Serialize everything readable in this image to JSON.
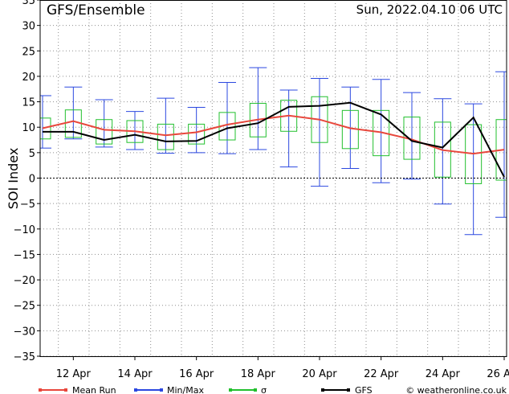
{
  "header": {
    "title": "GFS/Ensemble",
    "run": "Sun, 2022.04.10   06 UTC"
  },
  "credit": "© weatheronline.co.uk",
  "colors": {
    "mean": "#e8473c",
    "minmax": "#2b48e0",
    "sigma": "#22c02e",
    "gfs": "#000000",
    "grid": "#8f8f8f"
  },
  "chart_data": {
    "type": "line",
    "ylabel": "SOI Index",
    "ylim": [
      -35,
      35
    ],
    "yticks": [
      -35,
      -30,
      -25,
      -20,
      -15,
      -10,
      -5,
      0,
      5,
      10,
      15,
      20,
      25,
      30,
      35
    ],
    "x_start": "11 Apr 06",
    "x_end": "26 Apr 06",
    "x_step_hours": 24,
    "xtick_labels": [
      "12 Apr",
      "14 Apr",
      "16 Apr",
      "18 Apr",
      "20 Apr",
      "22 Apr",
      "24 Apr",
      "26 Apr"
    ],
    "xtick_positions": [
      1,
      3,
      5,
      7,
      9,
      11,
      13,
      15
    ],
    "reference_line": 0,
    "legend_position": "bottom",
    "legend": [
      {
        "label": "Mean Run",
        "color_key": "mean"
      },
      {
        "label": "Min/Max",
        "color_key": "minmax"
      },
      {
        "label": "σ",
        "color_key": "sigma"
      },
      {
        "label": "GFS",
        "color_key": "gfs"
      }
    ],
    "series": {
      "mean": [
        9.8,
        11.2,
        9.5,
        9.2,
        8.4,
        9.0,
        10.5,
        11.5,
        12.3,
        11.5,
        9.8,
        9.0,
        7.6,
        5.5,
        4.8,
        5.6
      ],
      "gfs": [
        9.1,
        9.1,
        7.5,
        8.5,
        7.2,
        7.3,
        9.8,
        10.8,
        14.0,
        14.2,
        14.8,
        12.5,
        7.3,
        6.0,
        11.9,
        0.2
      ],
      "max": [
        16.2,
        17.9,
        15.4,
        13.1,
        15.7,
        13.9,
        18.8,
        21.7,
        17.3,
        19.6,
        17.9,
        19.4,
        16.8,
        15.6,
        14.6,
        20.9
      ],
      "min": [
        5.9,
        7.7,
        6.1,
        5.6,
        4.9,
        5.0,
        4.8,
        5.6,
        2.2,
        -1.6,
        1.9,
        -0.9,
        -0.2,
        -5.1,
        -11.1,
        -7.7
      ],
      "sigma_high": [
        11.8,
        13.4,
        11.5,
        11.3,
        10.6,
        10.6,
        12.9,
        14.7,
        15.3,
        16.0,
        13.3,
        13.3,
        12.0,
        11.0,
        10.5,
        11.5
      ],
      "sigma_low": [
        7.7,
        8.0,
        6.7,
        7.0,
        5.6,
        6.7,
        7.5,
        8.1,
        9.2,
        7.0,
        5.8,
        4.4,
        3.7,
        0.2,
        -1.1,
        -0.4
      ]
    }
  }
}
